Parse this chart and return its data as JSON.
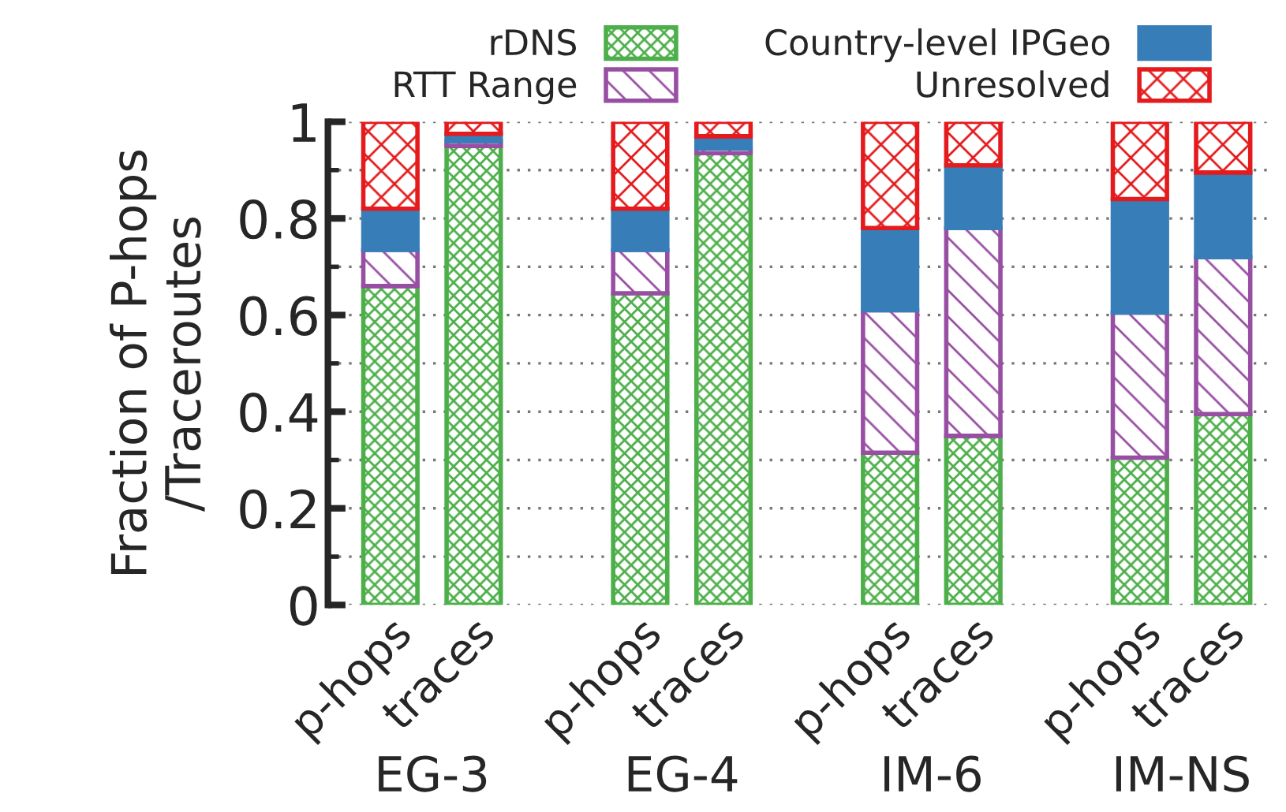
{
  "chart_data": {
    "type": "bar",
    "stacked": true,
    "ylabel": "Fraction of P-hops\n/Traceroutes",
    "categories": [
      "p-hops",
      "traces",
      null,
      "p-hops",
      "traces",
      null,
      "p-hops",
      "traces",
      null,
      "p-hops",
      "traces"
    ],
    "series": [
      {
        "name": "rDNS",
        "color": "#4daf4a",
        "values": [
          0.66,
          0.95,
          null,
          0.645,
          0.935,
          null,
          0.315,
          0.35,
          null,
          0.305,
          0.395
        ]
      },
      {
        "name": "RTT Range",
        "color": "#984ea3",
        "values": [
          0.075,
          0.01,
          null,
          0.09,
          0.01,
          null,
          0.295,
          0.43,
          null,
          0.3,
          0.325
        ]
      },
      {
        "name": "Country-level IPGeo",
        "color": "#377eb8",
        "values": [
          0.085,
          0.015,
          null,
          0.085,
          0.025,
          null,
          0.17,
          0.13,
          null,
          0.235,
          0.175
        ]
      },
      {
        "name": "Unresolved",
        "color": "#e41a1c",
        "values": [
          0.18,
          0.025,
          null,
          0.18,
          0.03,
          null,
          0.22,
          0.09,
          null,
          0.16,
          0.105
        ]
      }
    ],
    "annotations": [
      "EG-3",
      "EG-4",
      "IM-6",
      "IM-NS"
    ],
    "ylim": [
      0,
      1
    ],
    "yticks": [
      0,
      0.2,
      0.4,
      0.6,
      0.8,
      1
    ],
    "grid": "y",
    "legend": "top"
  }
}
